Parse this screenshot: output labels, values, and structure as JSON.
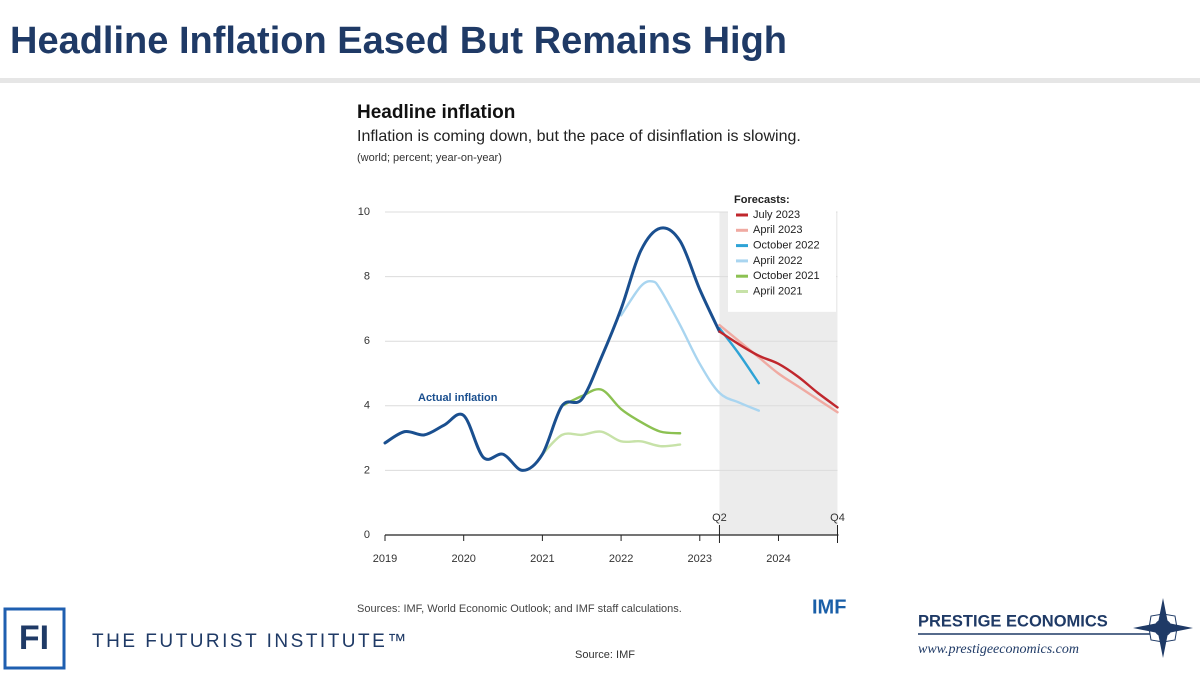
{
  "header": {
    "title": "Headline Inflation Eased But Remains High"
  },
  "chart_data": {
    "type": "line",
    "title": "Headline inflation",
    "subtitle": "Inflation is coming down, but the pace of disinflation is slowing.",
    "units_note": "(world; percent; year-on-year)",
    "legend_title": "Forecasts:",
    "xlim": [
      2019,
      2024.75
    ],
    "xticks": [
      2019,
      2020,
      2021,
      2022,
      2023,
      2024
    ],
    "ylim": [
      0,
      10
    ],
    "yticks": [
      0,
      2,
      4,
      6,
      8,
      10
    ],
    "grid": true,
    "legend": "upper right",
    "forecast_period": [
      2023.25,
      2024.75
    ],
    "period_labels": [
      {
        "value": 2023.25,
        "label": "Q2"
      },
      {
        "value": 2024.75,
        "label": "Q4"
      }
    ],
    "series": [
      {
        "name": "Actual inflation",
        "color": "#1a4f8f",
        "x": [
          2019,
          2019.25,
          2019.5,
          2019.75,
          2020,
          2020.25,
          2020.5,
          2020.75,
          2021,
          2021.25,
          2021.5,
          2021.75,
          2022,
          2022.25,
          2022.5,
          2022.75,
          2023,
          2023.25
        ],
        "values": [
          2.85,
          3.2,
          3.1,
          3.4,
          3.7,
          2.4,
          2.5,
          2.0,
          2.5,
          4.0,
          4.2,
          5.5,
          7.0,
          8.8,
          9.5,
          9.1,
          7.6,
          6.3
        ]
      },
      {
        "name": "July 2023",
        "color": "#c0272d",
        "x": [
          2023.25,
          2023.5,
          2023.75,
          2024,
          2024.25,
          2024.5,
          2024.75
        ],
        "values": [
          6.3,
          5.9,
          5.55,
          5.3,
          4.9,
          4.4,
          3.95
        ]
      },
      {
        "name": "April 2023",
        "color": "#f0aaa2",
        "x": [
          2023.25,
          2023.5,
          2023.75,
          2024,
          2024.25,
          2024.5,
          2024.75
        ],
        "values": [
          6.5,
          6.0,
          5.5,
          5.0,
          4.6,
          4.2,
          3.8
        ]
      },
      {
        "name": "October 2022",
        "color": "#2ea3d6",
        "x": [
          2023.25,
          2023.5,
          2023.75
        ],
        "values": [
          6.4,
          5.6,
          4.7
        ]
      },
      {
        "name": "April 2022",
        "color": "#a9d5f0",
        "x": [
          2022,
          2022.25,
          2022.4,
          2022.5,
          2022.75,
          2023,
          2023.25,
          2023.5,
          2023.75
        ],
        "values": [
          6.8,
          7.7,
          7.85,
          7.6,
          6.5,
          5.3,
          4.4,
          4.1,
          3.85
        ]
      },
      {
        "name": "October 2021",
        "color": "#8cc152",
        "x": [
          2021.25,
          2021.5,
          2021.75,
          2022,
          2022.25,
          2022.5,
          2022.75
        ],
        "values": [
          4.0,
          4.3,
          4.5,
          3.9,
          3.5,
          3.2,
          3.15
        ]
      },
      {
        "name": "April 2021",
        "color": "#c7e2a8",
        "x": [
          2021,
          2021.25,
          2021.5,
          2021.75,
          2022,
          2022.25,
          2022.5,
          2022.75
        ],
        "values": [
          2.5,
          3.1,
          3.1,
          3.2,
          2.9,
          2.9,
          2.75,
          2.8
        ]
      }
    ],
    "source_note": "Sources: IMF, World Economic Outlook; and IMF staff calculations.",
    "publisher": "IMF"
  },
  "footer": {
    "left_logo": "FI",
    "left_name": "THE FUTURIST INSTITUTE™",
    "source": "Source: IMF",
    "right_name": "PRESTIGE ECONOMICS",
    "right_url": "www.prestigeeconomics.com"
  }
}
